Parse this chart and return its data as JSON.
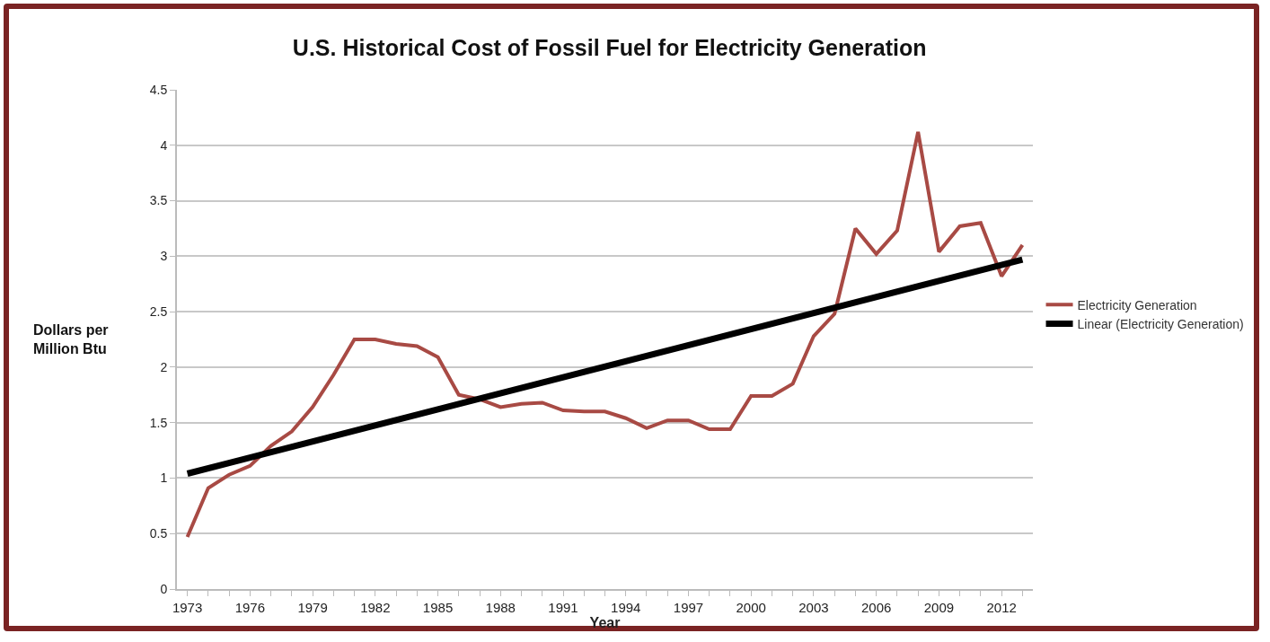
{
  "chart_data": {
    "type": "line",
    "title": "U.S. Historical Cost of Fossil Fuel for Electricity Generation",
    "xlabel": "Year",
    "ylabel": "Dollars per Million Btu",
    "x": [
      1973,
      1974,
      1975,
      1976,
      1977,
      1978,
      1979,
      1980,
      1981,
      1982,
      1983,
      1984,
      1985,
      1986,
      1987,
      1988,
      1989,
      1990,
      1991,
      1992,
      1993,
      1994,
      1995,
      1996,
      1997,
      1998,
      1999,
      2000,
      2001,
      2002,
      2003,
      2004,
      2005,
      2006,
      2007,
      2008,
      2009,
      2010,
      2011,
      2012,
      2013
    ],
    "series": [
      {
        "name": "Electricity Generation",
        "color": "#a84a44",
        "values": [
          0.47,
          0.91,
          1.03,
          1.11,
          1.29,
          1.42,
          1.64,
          1.93,
          2.25,
          2.25,
          2.21,
          2.19,
          2.09,
          1.75,
          1.71,
          1.64,
          1.67,
          1.68,
          1.61,
          1.6,
          1.6,
          1.54,
          1.45,
          1.52,
          1.52,
          1.44,
          1.44,
          1.74,
          1.74,
          1.85,
          2.28,
          2.48,
          3.25,
          3.02,
          3.23,
          4.12,
          3.04,
          3.27,
          3.3,
          2.82,
          3.1
        ]
      },
      {
        "name": "Linear (Electricity Generation)",
        "color": "#000000",
        "x": [
          1973,
          2013
        ],
        "values": [
          1.04,
          2.97
        ]
      }
    ],
    "xlim": [
      1972.5,
      2013.5
    ],
    "xticks": [
      1973,
      {
        "value": 1974,
        "label": null
      },
      {
        "value": 1975,
        "label": null
      },
      1976,
      {
        "value": 1977,
        "label": null
      },
      {
        "value": 1978,
        "label": null
      },
      1979,
      {
        "value": 1980,
        "label": null
      },
      {
        "value": 1981,
        "label": null
      },
      1982,
      {
        "value": 1983,
        "label": null
      },
      {
        "value": 1984,
        "label": null
      },
      1985,
      {
        "value": 1986,
        "label": null
      },
      {
        "value": 1987,
        "label": null
      },
      1988,
      {
        "value": 1989,
        "label": null
      },
      {
        "value": 1990,
        "label": null
      },
      1991,
      {
        "value": 1992,
        "label": null
      },
      {
        "value": 1993,
        "label": null
      },
      1994,
      {
        "value": 1995,
        "label": null
      },
      {
        "value": 1996,
        "label": null
      },
      1997,
      {
        "value": 1998,
        "label": null
      },
      {
        "value": 1999,
        "label": null
      },
      2000,
      {
        "value": 2001,
        "label": null
      },
      {
        "value": 2002,
        "label": null
      },
      2003,
      {
        "value": 2004,
        "label": null
      },
      {
        "value": 2005,
        "label": null
      },
      2006,
      {
        "value": 2007,
        "label": null
      },
      {
        "value": 2008,
        "label": null
      },
      2009,
      {
        "value": 2010,
        "label": null
      },
      {
        "value": 2011,
        "label": null
      },
      2012,
      {
        "value": 2013,
        "label": null
      }
    ],
    "ylim": [
      0,
      4.5
    ],
    "yticks": [
      0,
      0.5,
      1,
      1.5,
      2,
      2.5,
      3,
      3.5,
      4,
      4.5
    ],
    "grid": "y",
    "legend": "right",
    "marker": "none",
    "line_style": "solid"
  }
}
